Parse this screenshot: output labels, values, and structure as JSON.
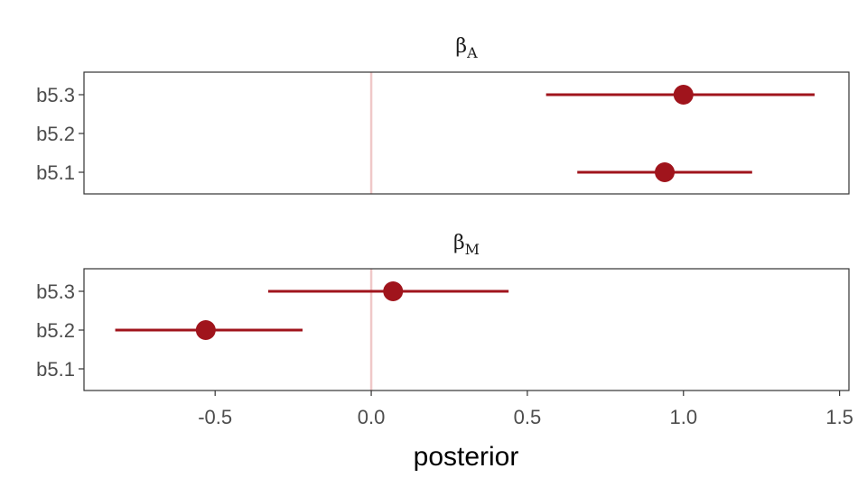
{
  "chart_data": {
    "type": "scatter",
    "xlabel": "posterior",
    "xlim": [
      -0.92,
      1.53
    ],
    "x_ticks": [
      -0.5,
      0.0,
      0.5,
      1.0,
      1.5
    ],
    "x_tick_labels": [
      "-0.5",
      "0.0",
      "0.5",
      "1.0",
      "1.5"
    ],
    "y_categories": [
      "b5.3",
      "b5.2",
      "b5.1"
    ],
    "reference_line": 0,
    "grid": false,
    "colors": {
      "point": "#a0141c",
      "reference": "#f0c8c8",
      "frame": "#333333"
    },
    "facets": [
      {
        "title_symbol": "β",
        "title_subscript": "A",
        "estimates": [
          {
            "model": "b5.3",
            "mean": 1.0,
            "lower": 0.56,
            "upper": 1.42
          },
          {
            "model": "b5.1",
            "mean": 0.94,
            "lower": 0.66,
            "upper": 1.22
          }
        ]
      },
      {
        "title_symbol": "β",
        "title_subscript": "M",
        "estimates": [
          {
            "model": "b5.3",
            "mean": 0.07,
            "lower": -0.33,
            "upper": 0.44
          },
          {
            "model": "b5.2",
            "mean": -0.53,
            "lower": -0.82,
            "upper": -0.22
          }
        ]
      }
    ]
  }
}
